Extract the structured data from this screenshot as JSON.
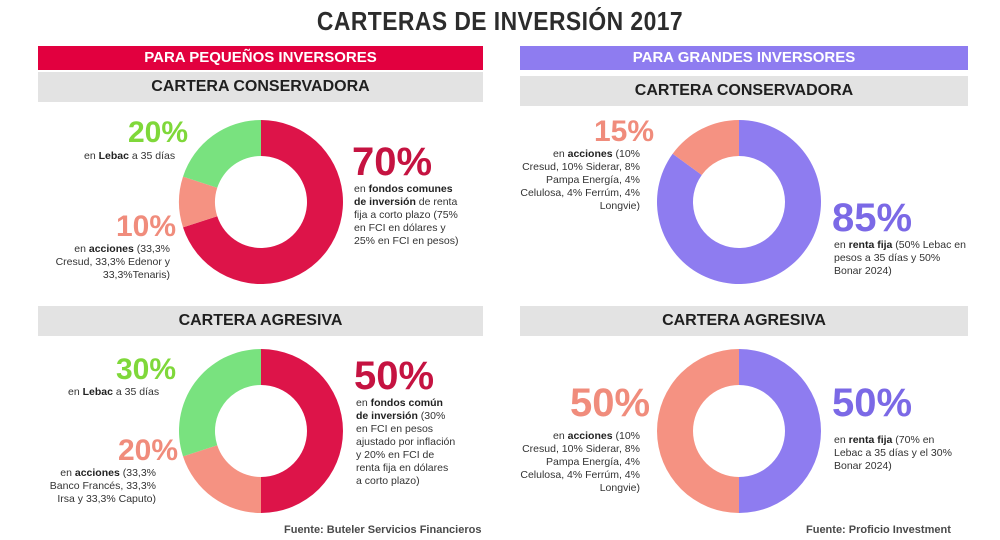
{
  "title": "CARTERAS DE INVERSIÓN 2017",
  "left": {
    "banner": "PARA PEQUEÑOS INVERSORES",
    "source": "Fuente: Buteler Servicios Financieros",
    "conservadora": {
      "header": "CARTERA CONSERVADORA",
      "items": [
        {
          "pct": "20%",
          "bold": "Lebac",
          "pre": "en ",
          "rest": " a 35 días"
        },
        {
          "pct": "10%",
          "bold": "acciones",
          "pre": "en ",
          "rest": " (33,3% Cresud, 33,3% Edenor y 33,3%Tenaris)"
        },
        {
          "pct": "70%",
          "bold": "fondos comunes de inversión",
          "pre": "en ",
          "rest": " de renta fija a corto plazo (75% en FCI en dólares y 25% en FCI en pesos)"
        }
      ]
    },
    "agresiva": {
      "header": "CARTERA AGRESIVA",
      "items": [
        {
          "pct": "30%",
          "bold": "Lebac",
          "pre": "en ",
          "rest": " a 35 días"
        },
        {
          "pct": "20%",
          "bold": "acciones",
          "pre": "en ",
          "rest": " (33,3% Banco Francés, 33,3% Irsa y 33,3% Caputo)"
        },
        {
          "pct": "50%",
          "bold": "fondos común de inversión",
          "pre": "en ",
          "rest": " (30% en FCI en pesos ajustado por inflación y 20% en FCI de renta fija en dólares a corto plazo)"
        }
      ]
    }
  },
  "right": {
    "banner": "PARA GRANDES INVERSORES",
    "source": "Fuente: Proficio Investment",
    "conservadora": {
      "header": "CARTERA CONSERVADORA",
      "items": [
        {
          "pct": "15%",
          "bold": "acciones",
          "pre": "en ",
          "rest": " (10% Cresud, 10% Siderar, 8% Pampa Energía, 4% Celulosa, 4% Ferrúm, 4% Longvie)"
        },
        {
          "pct": "85%",
          "bold": "renta fija",
          "pre": "en ",
          "rest": " (50% Lebac en pesos a 35 días y 50% Bonar 2024)"
        }
      ]
    },
    "agresiva": {
      "header": "CARTERA AGRESIVA",
      "items": [
        {
          "pct": "50%",
          "bold": "acciones",
          "pre": "en ",
          "rest": " (10% Cresud, 10% Siderar, 8% Pampa Energía, 4% Celulosa, 4% Ferrúm, 4% Longvie)"
        },
        {
          "pct": "50%",
          "bold": "renta fija",
          "pre": "en ",
          "rest": " (70% en Lebac a 35 días y el 30% Bonar 2024)"
        }
      ]
    }
  },
  "colors": {
    "crimson": "#dd1449",
    "salmon": "#f59282",
    "green": "#79e27f",
    "violet": "#8e7cf0",
    "pct_green": "#7fd83a",
    "pct_salmon": "#f08c7c",
    "pct_crimson": "#c51341",
    "pct_violet": "#7b69e6"
  },
  "chart_data": [
    {
      "type": "pie",
      "title": "CARTERA CONSERVADORA",
      "categories": [
        "Lebac",
        "acciones",
        "fondos comunes de inversión"
      ],
      "values": [
        20,
        10,
        70
      ],
      "colors": [
        "#79e27f",
        "#f59282",
        "#dd1449"
      ]
    },
    {
      "type": "pie",
      "title": "CARTERA AGRESIVA",
      "categories": [
        "Lebac",
        "acciones",
        "fondos común de inversión"
      ],
      "values": [
        30,
        20,
        50
      ],
      "colors": [
        "#79e27f",
        "#f59282",
        "#dd1449"
      ]
    },
    {
      "type": "pie",
      "title": "CARTERA CONSERVADORA",
      "categories": [
        "acciones",
        "renta fija"
      ],
      "values": [
        15,
        85
      ],
      "colors": [
        "#f59282",
        "#8e7cf0"
      ]
    },
    {
      "type": "pie",
      "title": "CARTERA AGRESIVA",
      "categories": [
        "acciones",
        "renta fija"
      ],
      "values": [
        50,
        50
      ],
      "colors": [
        "#f59282",
        "#8e7cf0"
      ]
    }
  ]
}
